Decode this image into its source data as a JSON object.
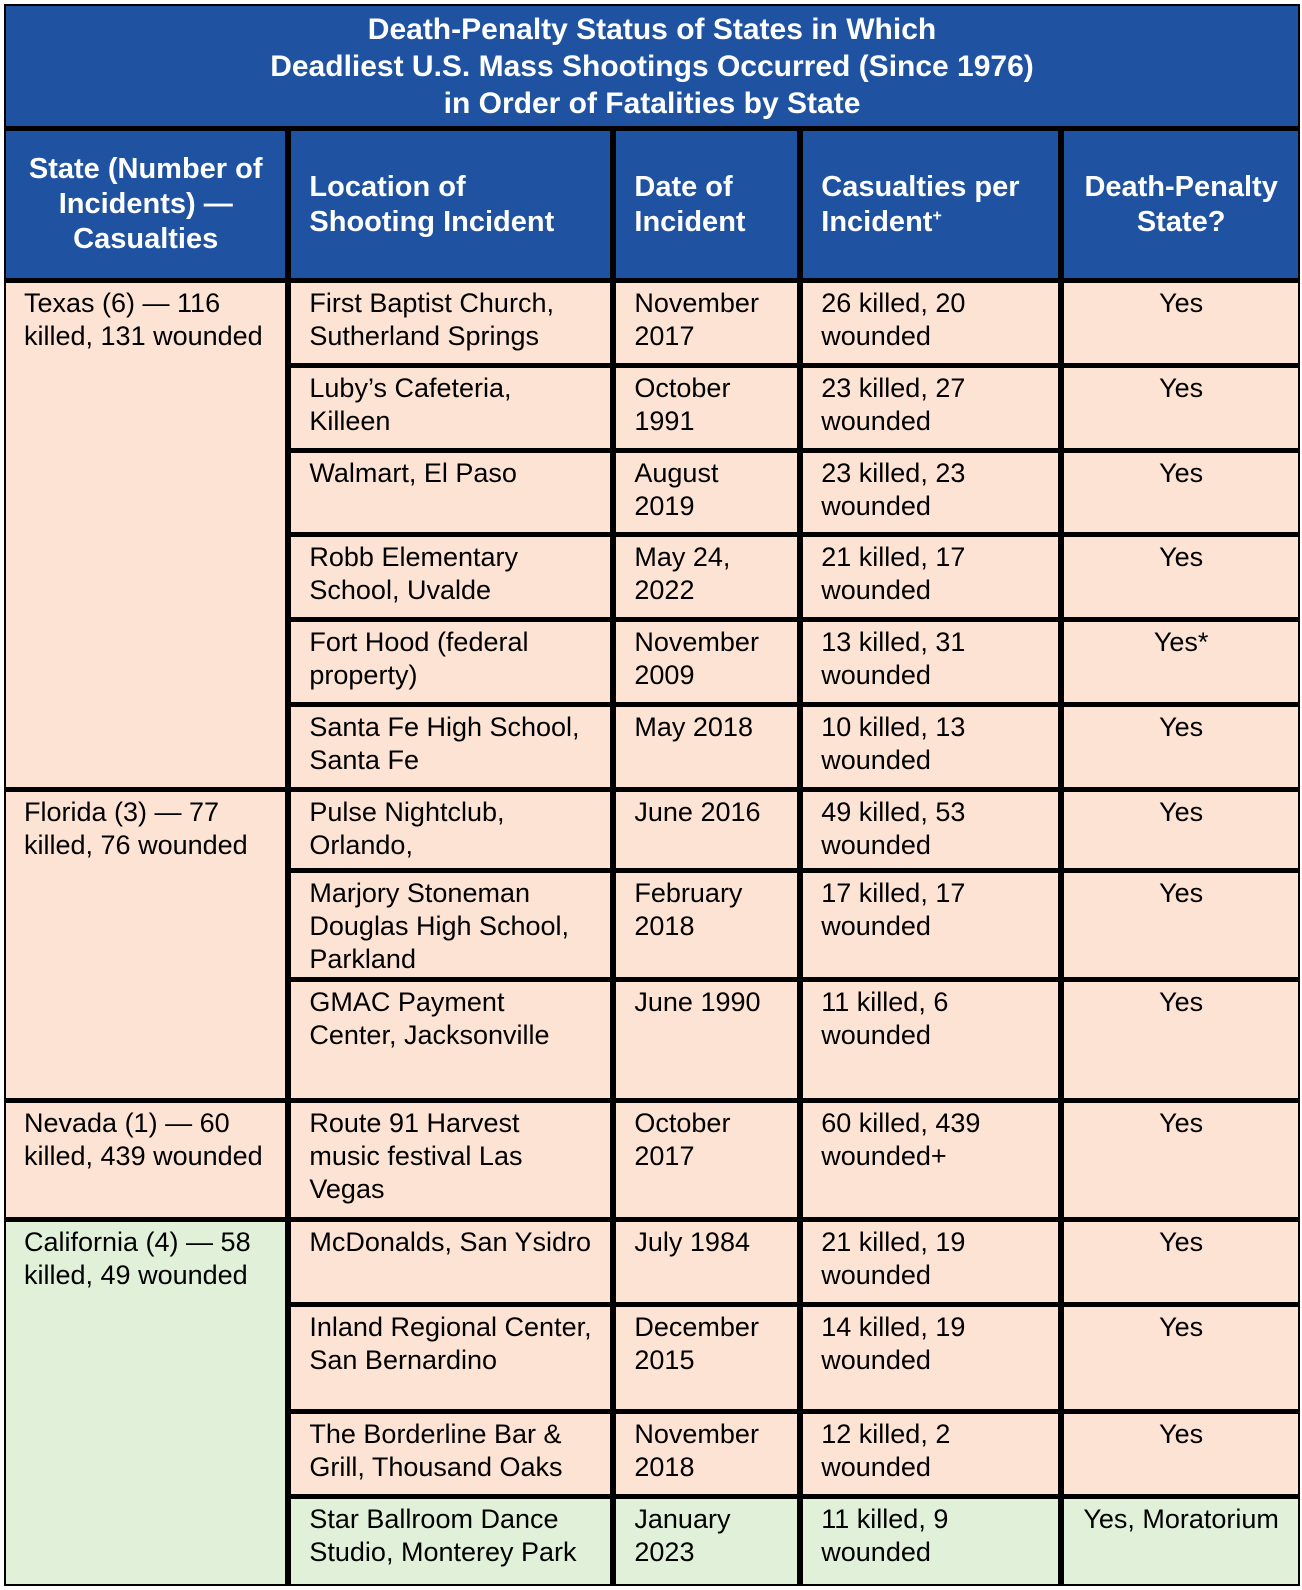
{
  "title": {
    "line1": "Death-Penalty Status of States in Which",
    "line2": "Deadliest U.S. Mass Shootings Occurred (Since 1976)",
    "line3": "in Order of Fatalities by State"
  },
  "headers": {
    "state": "State (Number of Incidents) — Casualties",
    "location": "Location of Shooting Incident",
    "date": "Date of Incident",
    "casualties": "Casualties per Incident",
    "casualties_sup": "+",
    "death_penalty": "Death-Penalty State?"
  },
  "states": [
    {
      "label": "Texas (6) — 116 killed, 131 wounded",
      "incidents": [
        {
          "location": "First Baptist Church, Sutherland Springs",
          "date": "November 2017",
          "casualties": "26 killed, 20 wounded",
          "death_penalty": "Yes"
        },
        {
          "location": "Luby’s Cafeteria, Killeen",
          "date": "October 1991",
          "casualties": "23 killed, 27 wounded",
          "death_penalty": "Yes"
        },
        {
          "location": "Walmart, El Paso",
          "date": "August 2019",
          "casualties": "23 killed, 23 wounded",
          "death_penalty": "Yes"
        },
        {
          "location": "Robb Elementary School, Uvalde",
          "date": "May 24, 2022",
          "casualties": "21 killed, 17 wounded",
          "death_penalty": "Yes"
        },
        {
          "location": "Fort Hood (federal property)",
          "date": "November 2009",
          "casualties": "13 killed, 31 wounded",
          "death_penalty": "Yes*"
        },
        {
          "location": "Santa Fe High School, Santa Fe",
          "date": "May 2018",
          "casualties": "10 killed, 13 wounded",
          "death_penalty": "Yes"
        }
      ]
    },
    {
      "label": "Florida (3) — 77 killed, 76 wounded",
      "incidents": [
        {
          "location": "Pulse Nightclub, Orlando,",
          "date": "June 2016",
          "casualties": "49 killed, 53 wounded",
          "death_penalty": "Yes"
        },
        {
          "location": "Marjory Stoneman Douglas High School, Parkland",
          "date": "February 2018",
          "casualties": "17 killed, 17 wounded",
          "death_penalty": "Yes"
        },
        {
          "location": "GMAC Payment Center, Jacksonville",
          "date": "June 1990",
          "casualties": "11 killed, 6 wounded",
          "death_penalty": "Yes"
        }
      ]
    },
    {
      "label": "Nevada (1) — 60 killed, 439 wounded",
      "incidents": [
        {
          "location": "Route 91 Harvest music festival Las Vegas",
          "date": "October 2017",
          "casualties": "60 killed, 439 wounded+",
          "death_penalty": "Yes"
        }
      ]
    },
    {
      "label": "California (4) — 58 killed, 49 wounded",
      "incidents": [
        {
          "location": "McDonalds, San Ysidro",
          "date": "July 1984",
          "casualties": "21 killed, 19 wounded",
          "death_penalty": "Yes"
        },
        {
          "location": "Inland Regional Center, San Bernardino",
          "date": "December 2015",
          "casualties": "14 killed, 19 wounded",
          "death_penalty": "Yes"
        },
        {
          "location": "The Borderline Bar & Grill, Thousand Oaks",
          "date": "November 2018",
          "casualties": "12 killed, 2 wounded",
          "death_penalty": "Yes"
        },
        {
          "location": "Star Ballroom Dance Studio, Monterey Park",
          "date": "January 2023",
          "casualties": "11 killed, 9 wounded",
          "death_penalty": "Yes, Moratorium"
        }
      ]
    }
  ],
  "colors": {
    "header_blue": "#1f52a0",
    "peach": "#fde3d4",
    "green": "#e1f1d9",
    "border": "#000000"
  }
}
